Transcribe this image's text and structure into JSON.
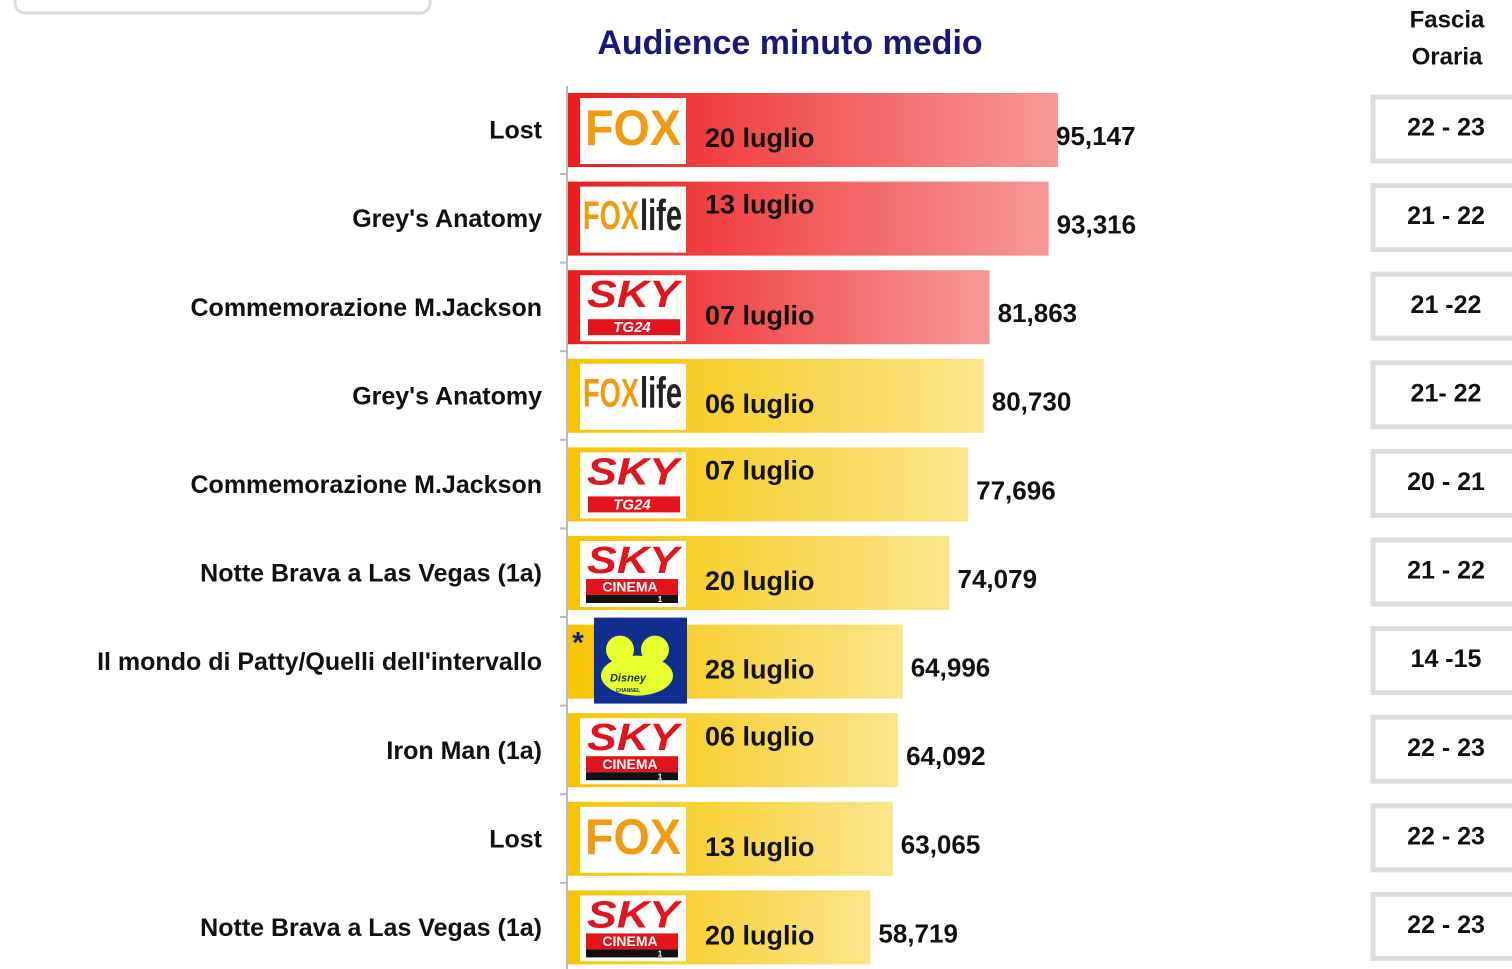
{
  "chart_data": {
    "type": "hbar",
    "title": "Audience minuto medio",
    "categories": [
      "Lost",
      "Grey's Anatomy",
      "Commemorazione M.Jackson",
      "Grey's Anatomy",
      "Commemorazione M.Jackson",
      "Notte Brava a Las Vegas (1a)",
      "Il mondo di Patty/Quelli dell'intervallo",
      "Iron Man (1a)",
      "Lost",
      "Notte Brava a Las Vegas (1a)"
    ],
    "values": [
      95147,
      93316,
      81863,
      80730,
      77696,
      74079,
      64996,
      64092,
      63065,
      58719
    ],
    "value_labels": [
      "95,147",
      "93,316",
      "81,863",
      "80,730",
      "77,696",
      "74,079",
      "64,996",
      "64,092",
      "63,065",
      "58,719"
    ],
    "dates": [
      "20 luglio",
      "13 luglio",
      "07 luglio",
      "06 luglio",
      "07 luglio",
      "20 luglio",
      "28 luglio",
      "06 luglio",
      "13 luglio",
      "20 luglio"
    ],
    "logos": [
      [
        "FOX"
      ],
      [
        "FOX",
        "life"
      ],
      [
        "SKY",
        "TG24"
      ],
      [
        "FOX",
        "life"
      ],
      [
        "SKY",
        "TG24"
      ],
      [
        "SKY",
        "CINEMA",
        "1"
      ],
      [
        "Disney",
        "CHANNEL"
      ],
      [
        "SKY",
        "CINEMA",
        "1"
      ],
      [
        "FOX"
      ],
      [
        "SKY",
        "CINEMA",
        "1"
      ]
    ],
    "notes": [
      null,
      null,
      null,
      null,
      null,
      null,
      "*",
      null,
      null,
      null
    ],
    "colors": [
      "#ec1c1c",
      "#ec1c1c",
      "#ec1c1c",
      "#f6c400",
      "#f6c400",
      "#f6c400",
      "#f6c400",
      "#f6c400",
      "#f6c400",
      "#f6c400"
    ],
    "time_slot_header": [
      "Fascia",
      "Oraria"
    ],
    "time_slots": [
      "22 - 23",
      "21 - 22",
      "21 -22",
      "21- 22",
      "20 - 21",
      "21 - 22",
      "14 -15",
      "22 - 23",
      "22 - 23",
      "22 - 23"
    ],
    "xlim": [
      0,
      100000
    ]
  }
}
